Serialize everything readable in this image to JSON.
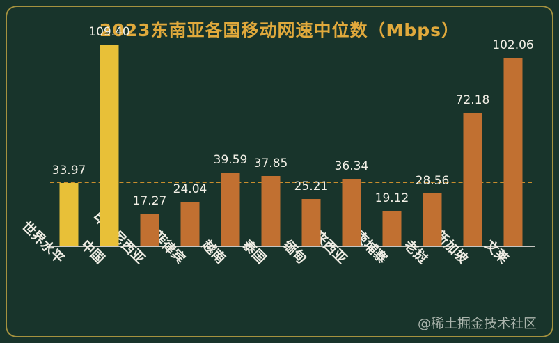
{
  "title": "2023东南亚各国移动网速中位数（Mbps）",
  "watermark": "@稀土掘金技术社区",
  "colors": {
    "background": "#18342b",
    "card_border": "#a5923f",
    "title": "#e0a93c",
    "bar_highlight": "#e8c038",
    "bar_normal": "#c17031",
    "reference_line": "#c98e2d",
    "axis_line": "#c6c6c2",
    "value_label": "#f2efe6",
    "x_label": "#efede4",
    "watermark": "#c6ccc4"
  },
  "chart_data": {
    "type": "bar",
    "title": "2023东南亚各国移动网速中位数（Mbps）",
    "xlabel": "",
    "ylabel": "",
    "ylim": [
      0,
      109.4
    ],
    "grid": false,
    "legend": "none",
    "categories": [
      "世界水平",
      "中国",
      "印度尼西亚",
      "菲律宾",
      "越南",
      "泰国",
      "缅甸",
      "马来西亚",
      "柬埔寨",
      "老挝",
      "新加坡",
      "文莱"
    ],
    "values": [
      33.97,
      109.4,
      17.27,
      24.04,
      39.59,
      37.85,
      25.21,
      36.34,
      19.12,
      28.56,
      72.18,
      102.06
    ],
    "value_labels": [
      "33.97",
      "109.40",
      "17.27",
      "24.04",
      "39.59",
      "37.85",
      "25.21",
      "36.34",
      "19.12",
      "28.56",
      "72.18",
      "102.06"
    ],
    "bar_colors": [
      "#e8c038",
      "#e8c038",
      "#c17031",
      "#c17031",
      "#c17031",
      "#c17031",
      "#c17031",
      "#c17031",
      "#c17031",
      "#c17031",
      "#c17031",
      "#c17031"
    ],
    "reference_line": {
      "value": 33.97,
      "label": "世界水平",
      "style": "dashed"
    }
  }
}
